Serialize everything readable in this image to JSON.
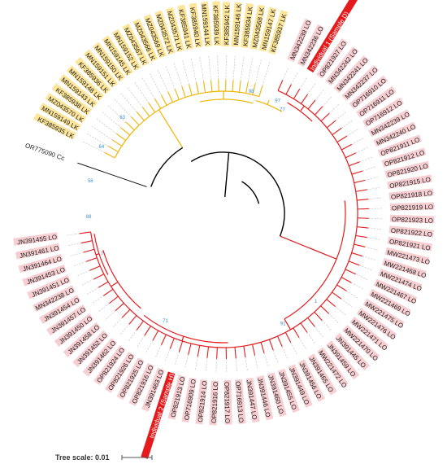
{
  "colors": {
    "lk_branch": "#f0b400",
    "lo_branch": "#e41a1c",
    "backbone": "#000000",
    "lk_bg": "#fde69a",
    "lo_bg": "#f7cfd2",
    "highlight_bg": "#e41a1c",
    "bootstrap": "#3a8fd6",
    "guide": "#bbbbbb"
  },
  "tree": {
    "outgroup": "OR775090 Cc",
    "lk_clade": [
      "KF385935 LK",
      "MN159149 LK",
      "MZ043570 LK",
      "KF385938 LK",
      "MN159143 LK",
      "MN159148 LK",
      "KF385936 LK",
      "MN159151 LK",
      "MN159150 LK",
      "MN159145 LK",
      "MN159152 LK",
      "MZ043567 LK",
      "MZ043566 LK",
      "MZ043569 LK",
      "MZ043572 LK",
      "MZ043571 LK",
      "KF385941 LK",
      "KF385940 LK",
      "MN159144 LK",
      "KF385939 LK",
      "KF385942 LK",
      "MN159146 LK",
      "KF385934 LK",
      "MZ043568 LK",
      "MN159147 LK",
      "KF385937 LK"
    ],
    "lo_clade": [
      "MN342239 LO",
      "MN342236 LO",
      "Individual 1 (Sample D)",
      "OP821927 LO",
      "MN342242 LO",
      "MN342241 LO",
      "MN342237 LO",
      "OP716910 LO",
      "OP716911 LO",
      "OP716912 LO",
      "MN342239 LO",
      "MN342240 LO",
      "OP821911 LO",
      "OP821912 LO",
      "OP821920 LO",
      "OP821915 LO",
      "OP821918 LO",
      "OP821919 LO",
      "OP821923 LO",
      "OP821922 LO",
      "OP821921 LO",
      "MW221473 LO",
      "MW221468 LO",
      "MW221474 LO",
      "MW221467 LO",
      "MW221469 LO",
      "MW221475 LO",
      "MW221476 LO",
      "MW221471 LO",
      "MW221470 LO",
      "JN391445 LO",
      "JN391459 LO",
      "MW221472 LO",
      "JN391465 LO",
      "JN391456 LO",
      "JN391449 LO",
      "JN391455 LO",
      "JN391460 LO",
      "JN391446 LO",
      "JN391447 LO",
      "OP716913 LO",
      "OP821917 LO",
      "OP821916 LO",
      "OP821914 LO",
      "OP716909 LO",
      "OP821913 LO",
      "Individual 2 (Sample H)",
      "JN391463 LO",
      "OP821916 LO",
      "OP821925 LO",
      "OP821926 LO",
      "OP821924 LO",
      "JN391462 LO",
      "JN391452 LO",
      "JN391458 LO",
      "JN391450 LO",
      "JN391457 LO",
      "JN391454 LO",
      "MN342238 LO",
      "JN391451 LO",
      "JN391453 LO",
      "JN391464 LO",
      "JN391461 LO",
      "JN391455 LO"
    ],
    "highlighted": [
      "Individual 1 (Sample D)",
      "Individual 2 (Sample H)"
    ],
    "bootstrap": [
      "98",
      "97",
      "77",
      "63",
      "64",
      "58",
      "88",
      "7",
      "71",
      "91",
      "1"
    ]
  },
  "scale_bar": {
    "label": "Tree scale: 0.01"
  }
}
